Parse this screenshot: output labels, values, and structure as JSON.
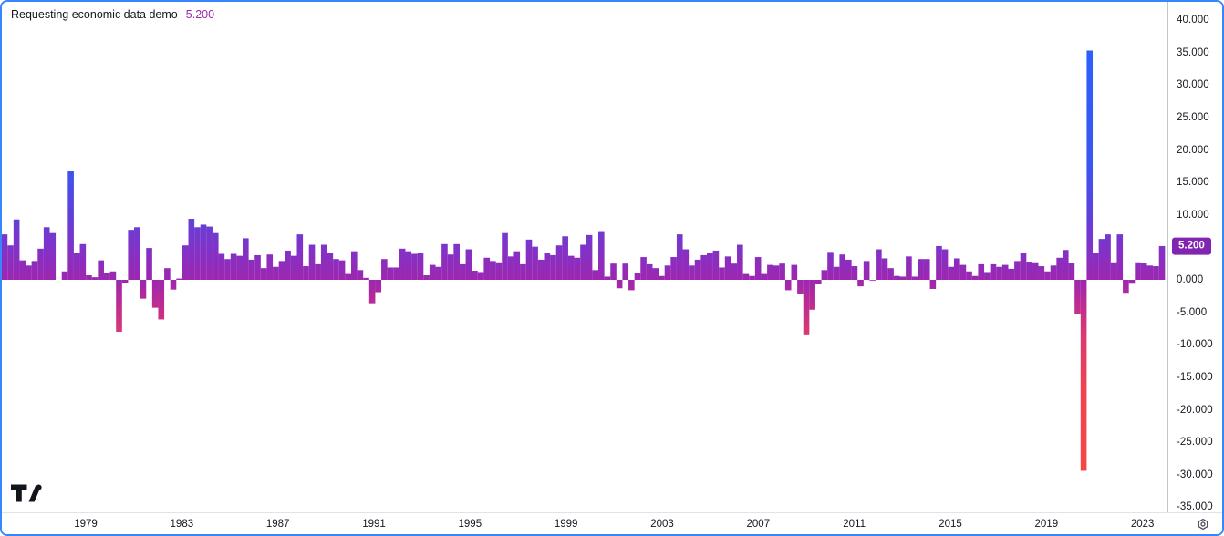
{
  "header": {
    "title": "Requesting economic data demo",
    "value": "5.200",
    "value_color": "#9c27b0"
  },
  "price_axis": {
    "ticks": [
      {
        "v": 40,
        "label": "40.000"
      },
      {
        "v": 35,
        "label": "35.000"
      },
      {
        "v": 30,
        "label": "30.000"
      },
      {
        "v": 25,
        "label": "25.000"
      },
      {
        "v": 20,
        "label": "20.000"
      },
      {
        "v": 15,
        "label": "15.000"
      },
      {
        "v": 10,
        "label": "10.000"
      },
      {
        "v": 0,
        "label": "0.000"
      },
      {
        "v": -5,
        "label": "-5.000"
      },
      {
        "v": -10,
        "label": "-10.000"
      },
      {
        "v": -15,
        "label": "-15.000"
      },
      {
        "v": -20,
        "label": "-20.000"
      },
      {
        "v": -25,
        "label": "-25.000"
      },
      {
        "v": -30,
        "label": "-30.000"
      },
      {
        "v": -35,
        "label": "-35.000"
      }
    ],
    "badge": {
      "text": "5.200",
      "value": 5.2,
      "bg_color": "#8124b0",
      "text_color": "#ffffff"
    }
  },
  "time_axis": {
    "labels": [
      "1979",
      "1983",
      "1987",
      "1991",
      "1995",
      "1999",
      "2003",
      "2007",
      "2011",
      "2015",
      "2019",
      "2023"
    ]
  },
  "icons": {
    "bottom_right": "gear-icon",
    "watermark": "tradingview-logo"
  },
  "chart_data": {
    "type": "bar",
    "title": "Requesting economic data demo",
    "ylabel": "",
    "xlabel": "",
    "frequency": "quarterly",
    "start_period": "1975-Q2",
    "end_period": "2023-Q3",
    "last_value": 5.2,
    "ylim": [
      -35.9,
      42.8
    ],
    "grid": false,
    "legend_position": "top-left",
    "y_ticks": [
      40,
      35,
      30,
      25,
      20,
      15,
      10,
      0,
      -5,
      -10,
      -15,
      -20,
      -25,
      -30,
      -35
    ],
    "x_tick_years": [
      1979,
      1983,
      1987,
      1991,
      1995,
      1999,
      2003,
      2007,
      2011,
      2015,
      2019,
      2023
    ],
    "values": [
      3.0,
      7.0,
      5.3,
      9.3,
      3.0,
      2.2,
      2.9,
      4.8,
      8.1,
      7.2,
      0.0,
      1.3,
      16.7,
      4.1,
      5.5,
      0.7,
      0.4,
      3.0,
      1.0,
      1.3,
      -8.0,
      -0.5,
      7.7,
      8.1,
      -2.9,
      4.9,
      -4.3,
      -6.1,
      1.8,
      -1.5,
      0.2,
      5.3,
      9.4,
      8.1,
      8.5,
      8.2,
      7.2,
      4.0,
      3.2,
      4.0,
      3.7,
      6.4,
      3.1,
      3.8,
      1.8,
      3.9,
      2.0,
      2.9,
      4.5,
      3.7,
      7.0,
      2.1,
      5.4,
      2.4,
      5.4,
      4.1,
      3.2,
      3.0,
      0.9,
      4.4,
      1.5,
      0.3,
      -3.6,
      -1.9,
      3.2,
      1.9,
      1.9,
      4.8,
      4.4,
      4.0,
      4.2,
      0.7,
      2.3,
      2.0,
      5.5,
      3.9,
      5.5,
      2.4,
      4.7,
      1.4,
      1.2,
      3.4,
      2.9,
      2.7,
      7.2,
      3.6,
      4.4,
      2.4,
      6.2,
      5.1,
      3.1,
      4.1,
      3.8,
      5.3,
      6.7,
      3.7,
      3.4,
      5.4,
      6.9,
      1.5,
      7.5,
      0.5,
      2.5,
      -1.3,
      2.5,
      -1.6,
      1.1,
      3.5,
      2.4,
      1.8,
      0.6,
      2.2,
      3.5,
      7.0,
      4.7,
      2.2,
      3.1,
      3.8,
      4.1,
      4.5,
      1.9,
      3.6,
      2.5,
      5.4,
      0.9,
      0.6,
      3.5,
      0.9,
      2.3,
      2.2,
      2.5,
      -1.6,
      2.3,
      -2.1,
      -8.4,
      -4.6,
      -0.7,
      1.5,
      4.3,
      2.0,
      3.9,
      3.1,
      2.1,
      -1.0,
      2.9,
      -0.1,
      4.7,
      3.3,
      1.8,
      0.6,
      0.5,
      3.6,
      0.5,
      3.2,
      3.2,
      -1.4,
      5.2,
      4.7,
      2.0,
      3.3,
      2.3,
      1.3,
      0.6,
      2.4,
      1.2,
      2.4,
      2.0,
      2.3,
      1.7,
      2.9,
      4.1,
      2.8,
      2.7,
      2.1,
      1.3,
      2.2,
      3.4,
      4.6,
      2.6,
      -5.3,
      -29.4,
      35.3,
      4.2,
      6.3,
      7.0,
      2.7,
      7.0,
      -2.0,
      -0.6,
      2.7,
      2.6,
      2.2,
      2.1,
      5.2
    ],
    "colors": {
      "gradient_stops": [
        [
          0.0,
          "#2962ff"
        ],
        [
          0.3,
          "#3b55f0"
        ],
        [
          0.4,
          "#5f41da"
        ],
        [
          0.48,
          "#8630c4"
        ],
        [
          0.533,
          "#9c27b0"
        ],
        [
          0.58,
          "#bb2b94"
        ],
        [
          0.65,
          "#dd3a6e"
        ],
        [
          0.76,
          "#ef4350"
        ],
        [
          1.0,
          "#f7493e"
        ]
      ]
    }
  }
}
